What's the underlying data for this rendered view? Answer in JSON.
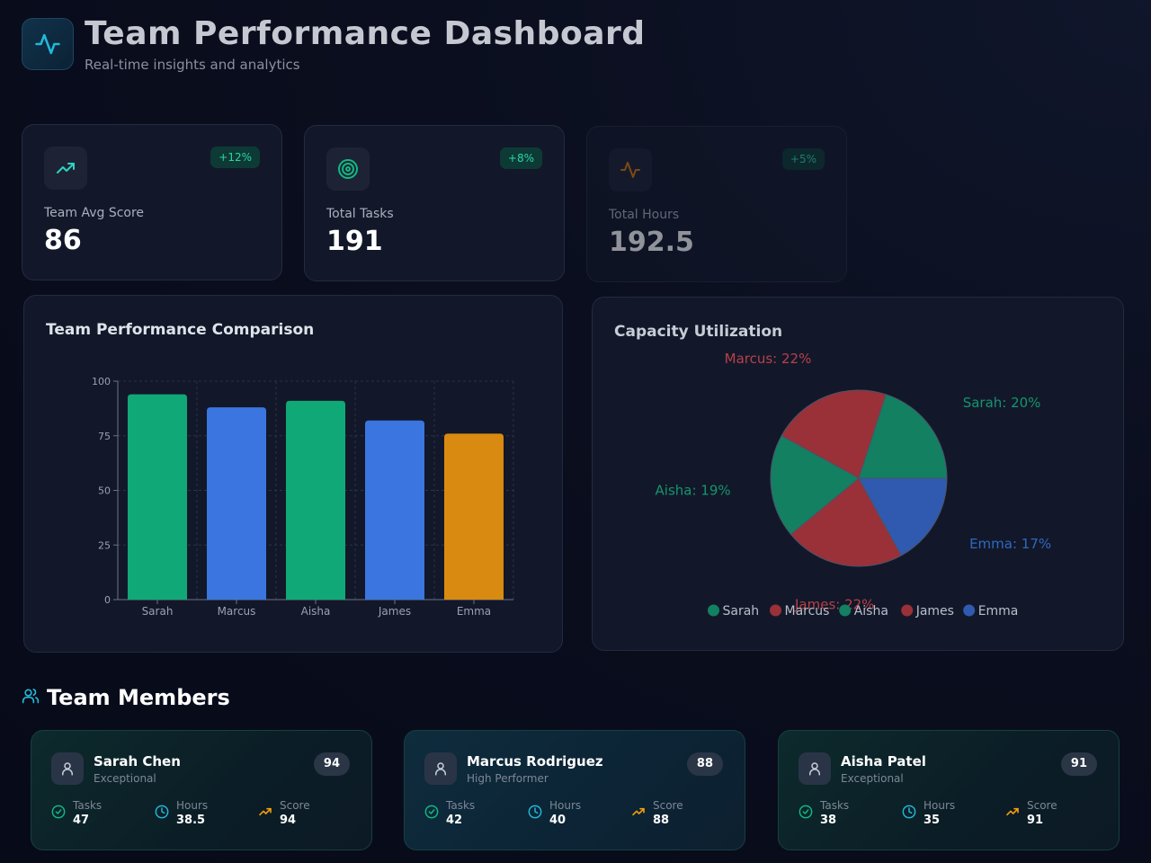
{
  "header": {
    "title": "Team Performance Dashboard",
    "subtitle": "Real-time insights and analytics"
  },
  "stats": [
    {
      "label": "Team Avg Score",
      "value": "86",
      "change": "+12%",
      "icon": "trending-up-icon",
      "color": "#2dd4bf"
    },
    {
      "label": "Total Tasks",
      "value": "191",
      "change": "+8%",
      "icon": "target-icon",
      "color": "#10b981"
    },
    {
      "label": "Total Hours",
      "value": "192.5",
      "change": "+5%",
      "icon": "activity-icon",
      "color": "#d97706"
    }
  ],
  "performance_chart": {
    "title": "Team Performance Comparison"
  },
  "capacity_chart": {
    "title": "Capacity Utilization"
  },
  "chart_data": [
    {
      "type": "bar",
      "title": "Team Performance Comparison",
      "categories": [
        "Sarah",
        "Marcus",
        "Aisha",
        "James",
        "Emma"
      ],
      "values": [
        94,
        88,
        91,
        82,
        76
      ],
      "colors": [
        "#10a877",
        "#3b76e0",
        "#10a877",
        "#3b76e0",
        "#d98a10"
      ],
      "ylim": [
        0,
        100
      ],
      "yticks": [
        "0",
        "25",
        "50",
        "75",
        "100"
      ],
      "grid": true
    },
    {
      "type": "pie",
      "title": "Capacity Utilization",
      "slices": [
        {
          "name": "Sarah",
          "value": 20,
          "label": "Sarah: 20%",
          "color": "#128061"
        },
        {
          "name": "Marcus",
          "value": 22,
          "label": "Marcus: 22%",
          "color": "#9a3038"
        },
        {
          "name": "Aisha",
          "value": 19,
          "label": "Aisha: 19%",
          "color": "#128061"
        },
        {
          "name": "James",
          "value": 22,
          "label": "James: 22%",
          "color": "#9a3038"
        },
        {
          "name": "Emma",
          "value": 17,
          "label": "Emma: 17%",
          "color": "#2f5ab0"
        }
      ],
      "legend": [
        "Sarah",
        "Marcus",
        "Aisha",
        "James",
        "Emma"
      ],
      "legend_position": "bottom"
    }
  ],
  "members_section": {
    "title": "Team Members",
    "icon": "users-icon"
  },
  "metric_labels": {
    "tasks": "Tasks",
    "hours": "Hours",
    "score": "Score"
  },
  "members": [
    {
      "name": "Sarah Chen",
      "role": "Exceptional",
      "badge": "94",
      "tasks": "47",
      "hours": "38.5",
      "score": "94"
    },
    {
      "name": "Marcus Rodriguez",
      "role": "High Performer",
      "badge": "88",
      "tasks": "42",
      "hours": "40",
      "score": "88"
    },
    {
      "name": "Aisha Patel",
      "role": "Exceptional",
      "badge": "91",
      "tasks": "38",
      "hours": "35",
      "score": "91"
    }
  ]
}
